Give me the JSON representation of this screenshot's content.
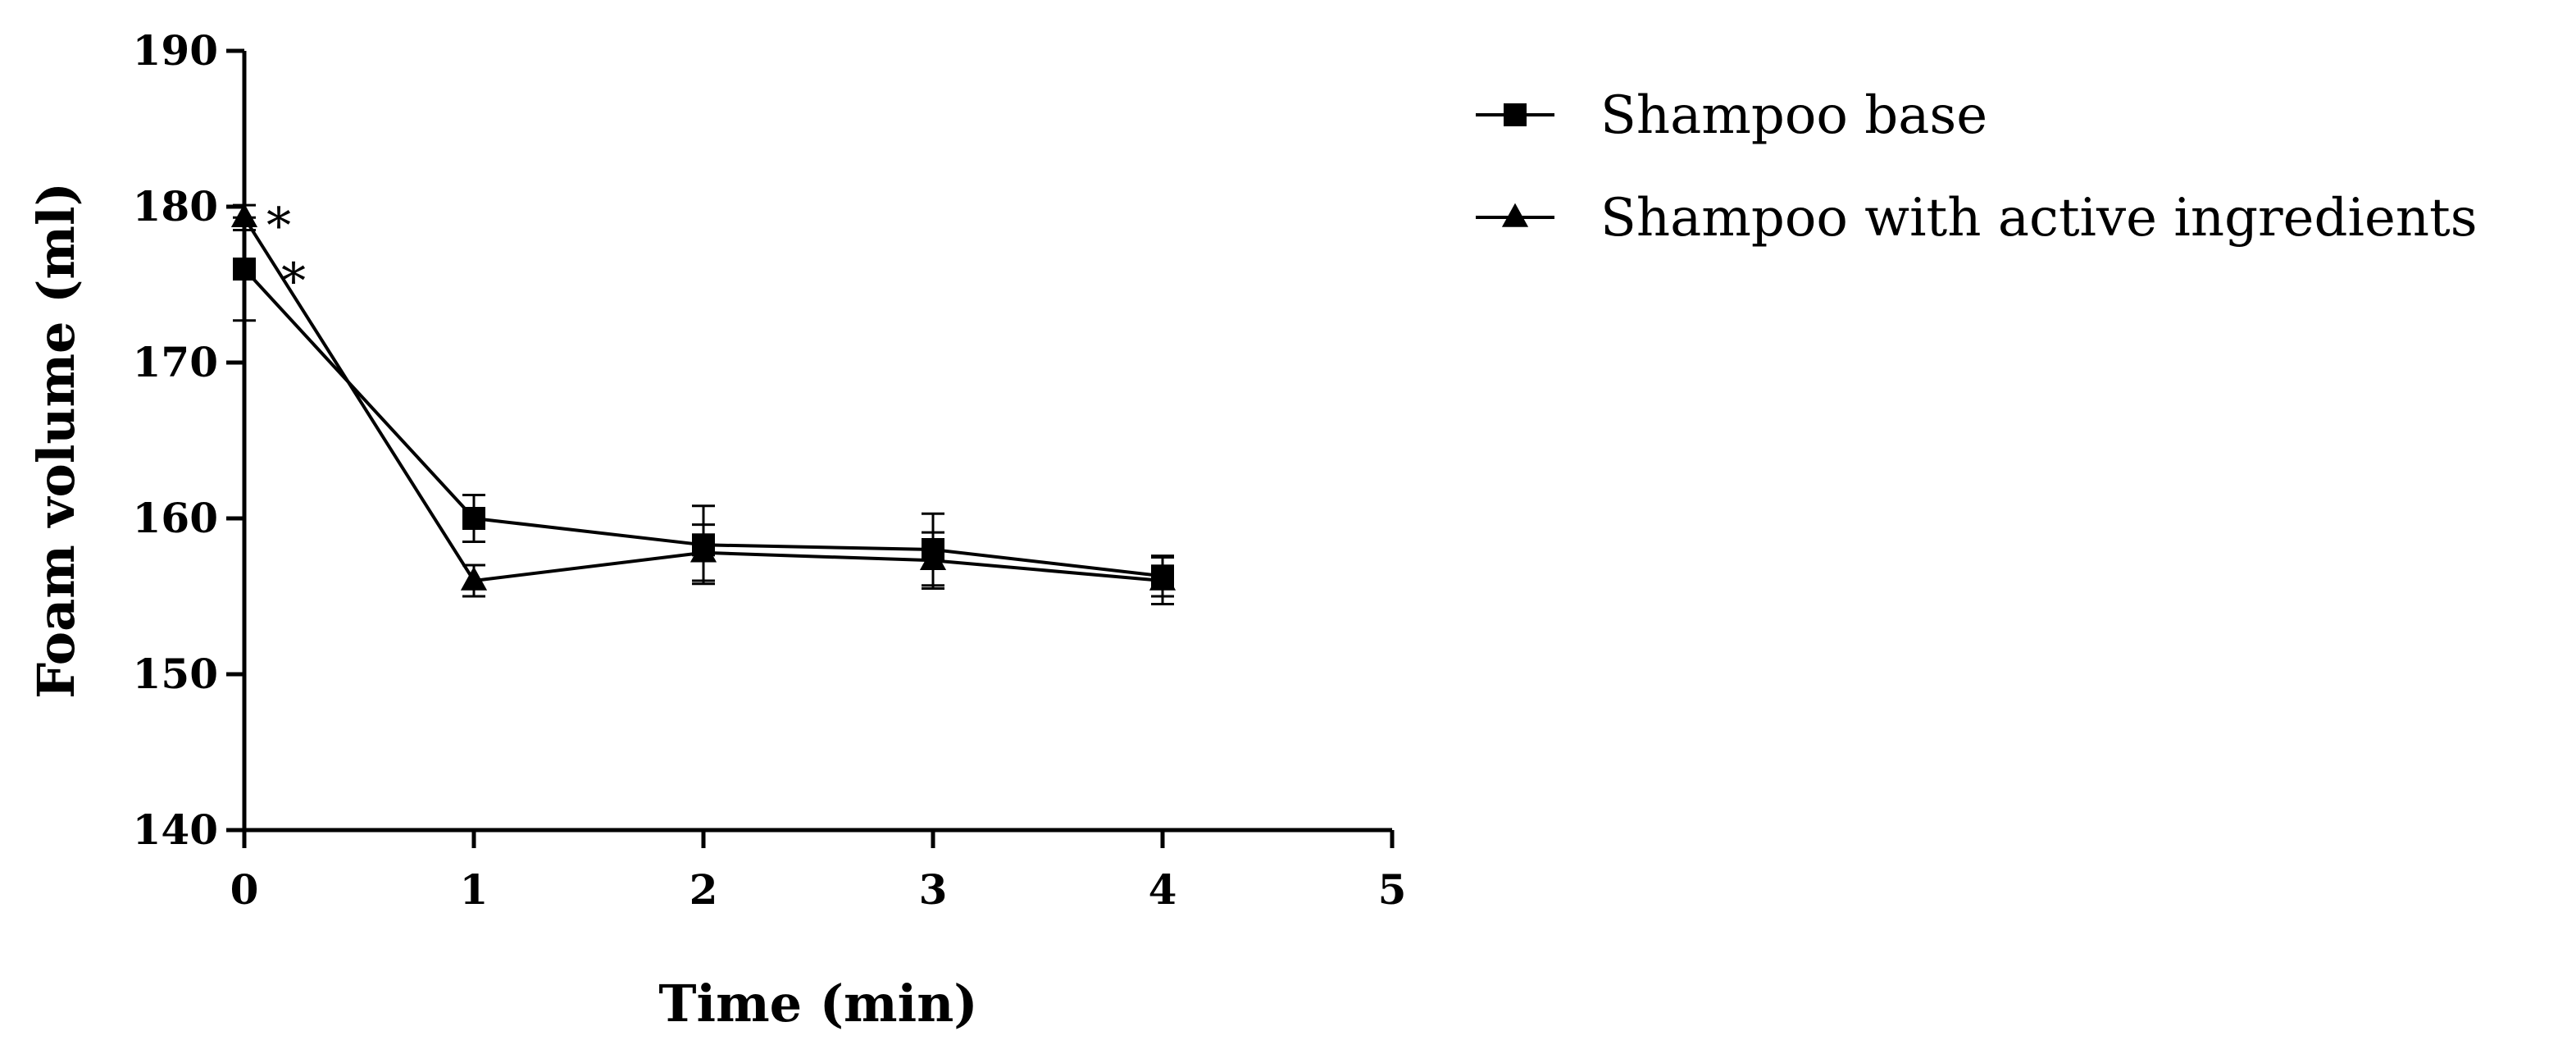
{
  "chart_data": {
    "type": "line",
    "title": "",
    "xlabel": "Time (min)",
    "ylabel": "Foam volume (ml)",
    "xlim": [
      0,
      5
    ],
    "ylim": [
      140,
      190
    ],
    "x_ticks": [
      "0",
      "1",
      "2",
      "3",
      "4",
      "5"
    ],
    "y_ticks": [
      "140",
      "150",
      "160",
      "170",
      "180",
      "190"
    ],
    "x": [
      0,
      1,
      2,
      3,
      4
    ],
    "grid": false,
    "legend_position": "top-right",
    "series": [
      {
        "name": "Shampoo base",
        "marker": "square",
        "color": "#000000",
        "values": [
          176,
          160,
          158.3,
          158,
          156.3
        ],
        "errors": [
          3.3,
          1.5,
          2.5,
          2.3,
          1.3
        ]
      },
      {
        "name": "Shampoo with active ingredients",
        "marker": "triangle",
        "color": "#000000",
        "values": [
          179.3,
          156,
          157.8,
          157.3,
          156
        ],
        "errors": [
          0.8,
          1.0,
          1.8,
          1.8,
          1.5
        ]
      }
    ],
    "annotations": [
      {
        "text": "*",
        "x": 0,
        "y": 179.3
      },
      {
        "text": "*",
        "x": 0,
        "y": 176
      }
    ]
  }
}
